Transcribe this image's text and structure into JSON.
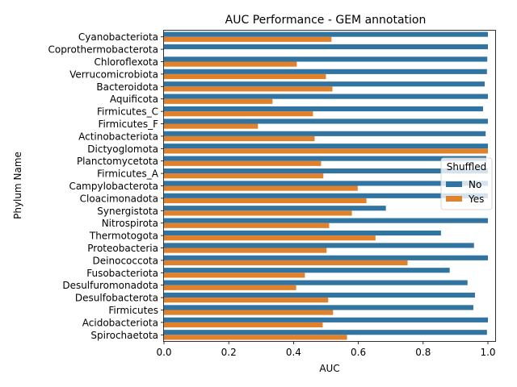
{
  "chart_data": {
    "type": "bar",
    "orientation": "horizontal",
    "title": "AUC Performance - GEM annotation",
    "xlabel": "AUC",
    "ylabel": "Phylum Name",
    "xlim": [
      0,
      1.0
    ],
    "x_ticks": [
      "0.0",
      "0.2",
      "0.4",
      "0.6",
      "0.8",
      "1.0"
    ],
    "grid": false,
    "legend": {
      "title": "Shuffled",
      "placement": "center-right"
    },
    "categories": [
      "Cyanobacteriota",
      "Coprothermobacterota",
      "Chloroflexota",
      "Verrucomicrobiota",
      "Bacteroidota",
      "Aquificota",
      "Firmicutes_C",
      "Firmicutes_F",
      "Actinobacteriota",
      "Dictyoglomota",
      "Planctomycetota",
      "Firmicutes_A",
      "Campylobacterota",
      "Cloacimonadota",
      "Synergistota",
      "Nitrospirota",
      "Thermotogota",
      "Proteobacteria",
      "Deinococcota",
      "Fusobacteriota",
      "Desulfuromonadota",
      "Desulfobacterota",
      "Firmicutes",
      "Acidobacteriota",
      "Spirochaetota"
    ],
    "series": [
      {
        "name": "No",
        "color": "#3274a1",
        "values": [
          1.0,
          1.0,
          0.998,
          0.997,
          0.99,
          1.0,
          0.985,
          1.0,
          0.993,
          1.0,
          0.995,
          1.0,
          1.0,
          1.0,
          0.685,
          1.0,
          0.855,
          0.957,
          1.0,
          0.882,
          0.937,
          0.96,
          0.955,
          1.0,
          0.997
        ]
      },
      {
        "name": "Yes",
        "color": "#e1812c",
        "values": [
          0.517,
          null,
          0.41,
          0.5,
          0.52,
          0.335,
          0.46,
          0.29,
          0.465,
          1.0,
          0.485,
          0.492,
          0.598,
          0.625,
          0.58,
          0.51,
          0.653,
          0.502,
          0.752,
          0.435,
          0.408,
          0.507,
          0.522,
          0.49,
          0.565
        ]
      }
    ]
  }
}
